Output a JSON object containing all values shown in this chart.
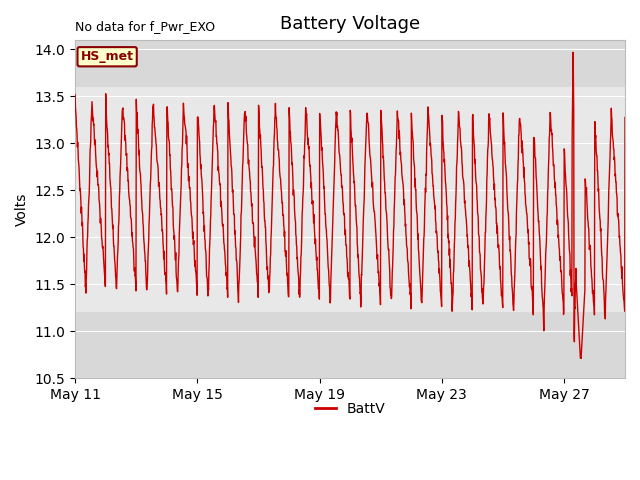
{
  "title": "Battery Voltage",
  "ylabel": "Volts",
  "top_left_text": "No data for f_Pwr_EXO",
  "legend_label": "BattV",
  "legend_color": "#cc0000",
  "line_color": "#cc0000",
  "background_color": "#ffffff",
  "plot_bg_outer": "#d8d8d8",
  "plot_bg_inner": "#e8e8e8",
  "ylim": [
    10.5,
    14.1
  ],
  "xlim_days": 18,
  "yticks": [
    10.5,
    11.0,
    11.5,
    12.0,
    12.5,
    13.0,
    13.5,
    14.0
  ],
  "xtick_labels": [
    "May 11",
    "May 15",
    "May 19",
    "May 23",
    "May 27"
  ],
  "xtick_positions": [
    0,
    4,
    8,
    12,
    16
  ],
  "tag_text": "HS_met",
  "tag_bg": "#ffffcc",
  "tag_border": "#8B0000",
  "tag_text_color": "#8B0000",
  "title_fontsize": 13,
  "axis_fontsize": 10,
  "tick_fontsize": 10
}
